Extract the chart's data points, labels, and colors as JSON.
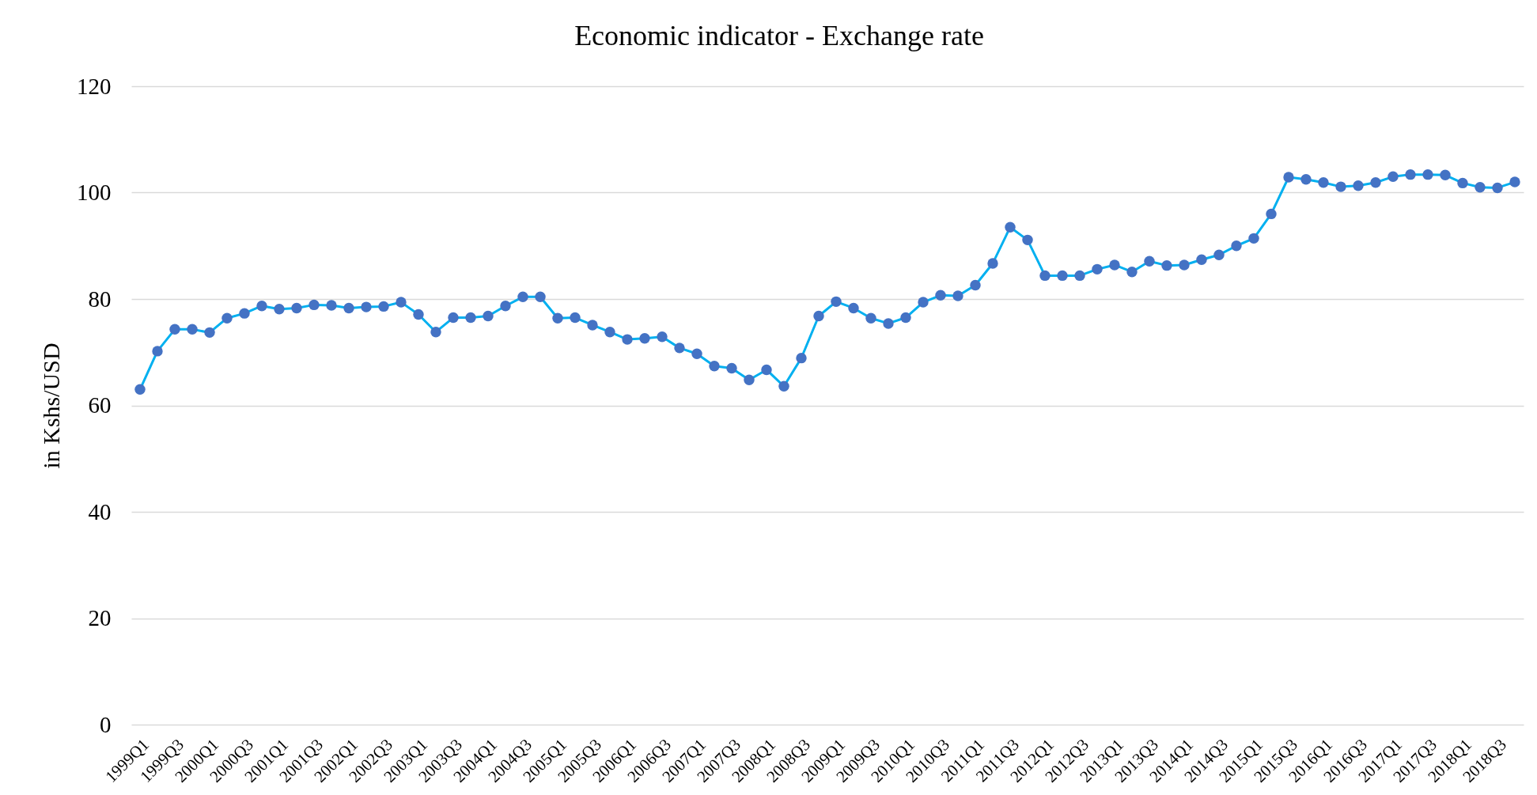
{
  "chart_data": {
    "type": "line",
    "title": "Economic indicator - Exchange rate",
    "ylabel": "in Kshs/USD",
    "categories": [
      "1999Q1",
      null,
      "1999Q3",
      null,
      "2000Q1",
      null,
      "2000Q3",
      null,
      "2001Q1",
      null,
      "2001Q3",
      null,
      "2002Q1",
      null,
      "2002Q3",
      null,
      "2003Q1",
      null,
      "2003Q3",
      null,
      "2004Q1",
      null,
      "2004Q3",
      null,
      "2005Q1",
      null,
      "2005Q3",
      null,
      "2006Q1",
      null,
      "2006Q3",
      null,
      "2007Q1",
      null,
      "2007Q3",
      null,
      "2008Q1",
      null,
      "2008Q3",
      null,
      "2009Q1",
      null,
      "2009Q3",
      null,
      "2010Q1",
      null,
      "2010Q3",
      null,
      "2011Q1",
      null,
      "2011Q3",
      null,
      "2012Q1",
      null,
      "2012Q3",
      null,
      "2013Q1",
      null,
      "2013Q3",
      null,
      "2014Q1",
      null,
      "2014Q3",
      null,
      "2015Q1",
      null,
      "2015Q3",
      null,
      "2016Q1",
      null,
      "2016Q3",
      null,
      "2017Q1",
      null,
      "2017Q3",
      null,
      "2018Q1",
      null,
      "2018Q3",
      null
    ],
    "series": [
      {
        "color": "#00b0f0",
        "colors": [
          "#4472c4",
          "#4472c4",
          "#4472c4",
          "#4472c4",
          "#4472c4",
          "#4472c4",
          "#4472c4",
          "#4472c4",
          "#4472c4",
          "#4472c4",
          "#4472c4",
          "#4472c4",
          "#4472c4",
          "#4472c4",
          "#4472c4",
          "#4472c4",
          "#4472c4",
          "#4472c4",
          "#4472c4",
          "#4472c4",
          "#4472c4",
          "#4472c4",
          "#4472c4",
          "#4472c4",
          "#4472c4",
          "#4472c4",
          "#4472c4",
          "#4472c4",
          "#4472c4",
          "#4472c4",
          "#4472c4",
          "#4472c4",
          "#4472c4",
          "#4472c4",
          "#4472c4",
          "#4472c4",
          "#4472c4",
          "#4472c4",
          "#4472c4",
          "#4472c4",
          "#4472c4",
          "#4472c4",
          "#4472c4",
          "#4472c4",
          "#4472c4",
          "#4472c4",
          "#4472c4",
          "#4472c4",
          "#4472c4",
          "#4472c4",
          "#4472c4",
          "#4472c4",
          "#4472c4",
          "#4472c4",
          "#4472c4",
          "#4472c4",
          "#4472c4",
          "#4472c4",
          "#4472c4",
          "#4472c4",
          "#4472c4",
          "#4472c4",
          "#4472c4",
          "#4472c4",
          "#4472c4",
          "#4472c4",
          "#4472c4",
          "#4472c4",
          "#4472c4",
          "#4472c4",
          "#4472c4",
          "#4472c4",
          "#4472c4",
          "#4472c4",
          "#4472c4",
          "#4472c4",
          "#4472c4",
          "#4472c4",
          "#4472c4",
          "#4472c4"
        ],
        "values": [
          63.0,
          70.2,
          74.3,
          74.3,
          73.7,
          76.4,
          77.3,
          78.7,
          78.1,
          78.3,
          78.9,
          78.8,
          78.3,
          78.5,
          78.6,
          79.4,
          77.1,
          73.8,
          76.5,
          76.5,
          76.8,
          78.7,
          80.4,
          80.4,
          76.4,
          76.5,
          75.1,
          73.8,
          72.4,
          72.6,
          72.9,
          70.8,
          69.7,
          67.4,
          67.0,
          64.8,
          66.7,
          63.6,
          68.9,
          76.8,
          79.5,
          78.3,
          76.4,
          75.4,
          76.5,
          79.4,
          80.7,
          80.6,
          82.6,
          86.7,
          93.5,
          91.1,
          84.4,
          84.4,
          84.4,
          85.6,
          86.4,
          85.1,
          87.1,
          86.3,
          86.4,
          87.4,
          88.3,
          90.0,
          91.4,
          96.0,
          102.9,
          102.5,
          101.9,
          101.1,
          101.3,
          101.9,
          103.0,
          103.4,
          103.4,
          103.3,
          101.8,
          101.0,
          100.9,
          102.0
        ]
      }
    ],
    "ylim": [
      0,
      120
    ],
    "yticks": [
      0,
      20,
      40,
      60,
      80,
      100,
      120
    ],
    "grid": "y",
    "marker": "circle",
    "line_style": "solid"
  }
}
